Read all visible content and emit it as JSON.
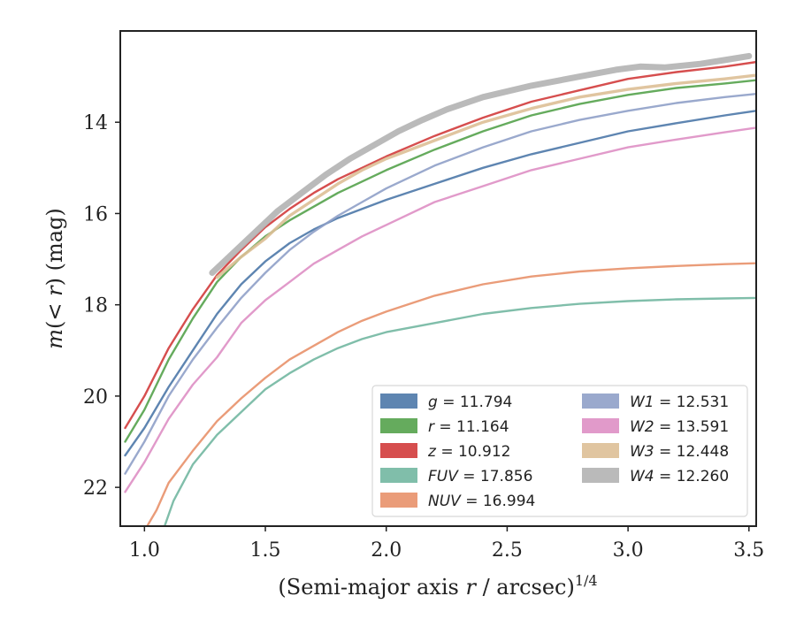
{
  "chart_data": {
    "type": "line",
    "xlabel": "(Semi-major axis r / arcsec)",
    "xlabel_parts": {
      "pre": "(Semi-major axis ",
      "var": "r",
      "post": " / arcsec)",
      "exp": "1/4"
    },
    "ylabel": "m(< r) (mag)",
    "ylabel_parts": {
      "pre": "m",
      "mid": "(< ",
      "var": "r",
      "post": ") (mag)"
    },
    "xlim": [
      0.9,
      3.53
    ],
    "ylim": [
      22.85,
      12.0
    ],
    "y_inverted": true,
    "xticks": [
      "1.0",
      "1.5",
      "2.0",
      "2.5",
      "3.0",
      "3.5"
    ],
    "xtick_values": [
      1.0,
      1.5,
      2.0,
      2.5,
      3.0,
      3.5
    ],
    "yticks": [
      "14",
      "16",
      "18",
      "20",
      "22"
    ],
    "ytick_values": [
      14,
      16,
      18,
      20,
      22
    ],
    "grid": false,
    "legend_position": "lower-right",
    "series": [
      {
        "name": "g = 11.794",
        "band": "g",
        "value": "11.794",
        "color": "#4c78a8",
        "width": 2.4,
        "points": [
          [
            0.92,
            21.3
          ],
          [
            1.0,
            20.7
          ],
          [
            1.1,
            19.8
          ],
          [
            1.2,
            19.0
          ],
          [
            1.3,
            18.2
          ],
          [
            1.4,
            17.55
          ],
          [
            1.5,
            17.05
          ],
          [
            1.6,
            16.65
          ],
          [
            1.7,
            16.35
          ],
          [
            1.8,
            16.1
          ],
          [
            1.9,
            15.9
          ],
          [
            2.0,
            15.7
          ],
          [
            2.2,
            15.35
          ],
          [
            2.4,
            15.0
          ],
          [
            2.6,
            14.7
          ],
          [
            2.8,
            14.45
          ],
          [
            3.0,
            14.2
          ],
          [
            3.2,
            14.02
          ],
          [
            3.4,
            13.85
          ],
          [
            3.53,
            13.75
          ]
        ]
      },
      {
        "name": "r = 11.164",
        "band": "r",
        "value": "11.164",
        "color": "#54a24b",
        "width": 2.4,
        "points": [
          [
            0.92,
            21.0
          ],
          [
            1.0,
            20.3
          ],
          [
            1.1,
            19.2
          ],
          [
            1.2,
            18.3
          ],
          [
            1.3,
            17.5
          ],
          [
            1.4,
            16.95
          ],
          [
            1.5,
            16.5
          ],
          [
            1.6,
            16.15
          ],
          [
            1.7,
            15.85
          ],
          [
            1.8,
            15.55
          ],
          [
            1.9,
            15.3
          ],
          [
            2.0,
            15.05
          ],
          [
            2.2,
            14.6
          ],
          [
            2.4,
            14.2
          ],
          [
            2.6,
            13.85
          ],
          [
            2.8,
            13.6
          ],
          [
            3.0,
            13.4
          ],
          [
            3.2,
            13.25
          ],
          [
            3.4,
            13.15
          ],
          [
            3.53,
            13.08
          ]
        ]
      },
      {
        "name": "z = 10.912",
        "band": "z",
        "value": "10.912",
        "color": "#d13b3b",
        "width": 2.4,
        "points": [
          [
            0.92,
            20.7
          ],
          [
            1.0,
            20.0
          ],
          [
            1.1,
            18.95
          ],
          [
            1.2,
            18.1
          ],
          [
            1.3,
            17.35
          ],
          [
            1.4,
            16.8
          ],
          [
            1.5,
            16.3
          ],
          [
            1.6,
            15.9
          ],
          [
            1.7,
            15.55
          ],
          [
            1.8,
            15.25
          ],
          [
            1.9,
            15.0
          ],
          [
            2.0,
            14.75
          ],
          [
            2.2,
            14.3
          ],
          [
            2.4,
            13.9
          ],
          [
            2.6,
            13.55
          ],
          [
            2.8,
            13.3
          ],
          [
            3.0,
            13.05
          ],
          [
            3.2,
            12.9
          ],
          [
            3.4,
            12.78
          ],
          [
            3.53,
            12.68
          ]
        ]
      },
      {
        "name": "FUV = 17.856",
        "band": "FUV",
        "value": "17.856",
        "color": "#72b7a1",
        "width": 2.4,
        "points": [
          [
            1.08,
            22.9
          ],
          [
            1.12,
            22.3
          ],
          [
            1.2,
            21.5
          ],
          [
            1.3,
            20.85
          ],
          [
            1.4,
            20.35
          ],
          [
            1.5,
            19.85
          ],
          [
            1.6,
            19.5
          ],
          [
            1.7,
            19.2
          ],
          [
            1.8,
            18.95
          ],
          [
            1.9,
            18.75
          ],
          [
            2.0,
            18.6
          ],
          [
            2.2,
            18.4
          ],
          [
            2.4,
            18.2
          ],
          [
            2.6,
            18.07
          ],
          [
            2.8,
            17.98
          ],
          [
            3.0,
            17.92
          ],
          [
            3.2,
            17.88
          ],
          [
            3.4,
            17.86
          ],
          [
            3.53,
            17.85
          ]
        ]
      },
      {
        "name": "NUV = 16.994",
        "band": "NUV",
        "value": "16.994",
        "color": "#e8916a",
        "width": 2.4,
        "points": [
          [
            1.0,
            22.95
          ],
          [
            1.05,
            22.5
          ],
          [
            1.1,
            21.9
          ],
          [
            1.2,
            21.2
          ],
          [
            1.3,
            20.55
          ],
          [
            1.4,
            20.05
          ],
          [
            1.5,
            19.6
          ],
          [
            1.6,
            19.2
          ],
          [
            1.7,
            18.9
          ],
          [
            1.8,
            18.6
          ],
          [
            1.9,
            18.35
          ],
          [
            2.0,
            18.15
          ],
          [
            2.2,
            17.8
          ],
          [
            2.4,
            17.55
          ],
          [
            2.6,
            17.38
          ],
          [
            2.8,
            17.27
          ],
          [
            3.0,
            17.2
          ],
          [
            3.2,
            17.15
          ],
          [
            3.4,
            17.11
          ],
          [
            3.53,
            17.09
          ]
        ]
      },
      {
        "name": "W1 = 12.531",
        "band": "W1",
        "value": "12.531",
        "color": "#8fa0c8",
        "width": 2.4,
        "points": [
          [
            0.92,
            21.7
          ],
          [
            1.0,
            21.0
          ],
          [
            1.1,
            20.0
          ],
          [
            1.2,
            19.2
          ],
          [
            1.3,
            18.5
          ],
          [
            1.4,
            17.85
          ],
          [
            1.5,
            17.3
          ],
          [
            1.6,
            16.8
          ],
          [
            1.7,
            16.4
          ],
          [
            1.8,
            16.05
          ],
          [
            1.9,
            15.75
          ],
          [
            2.0,
            15.45
          ],
          [
            2.2,
            14.95
          ],
          [
            2.4,
            14.55
          ],
          [
            2.6,
            14.2
          ],
          [
            2.8,
            13.95
          ],
          [
            3.0,
            13.75
          ],
          [
            3.2,
            13.58
          ],
          [
            3.4,
            13.45
          ],
          [
            3.53,
            13.38
          ]
        ]
      },
      {
        "name": "W2 = 13.591",
        "band": "W2",
        "value": "13.591",
        "color": "#de8fc4",
        "width": 2.4,
        "points": [
          [
            0.92,
            22.1
          ],
          [
            1.0,
            21.45
          ],
          [
            1.1,
            20.5
          ],
          [
            1.2,
            19.75
          ],
          [
            1.3,
            19.15
          ],
          [
            1.4,
            18.4
          ],
          [
            1.5,
            17.9
          ],
          [
            1.6,
            17.5
          ],
          [
            1.7,
            17.1
          ],
          [
            1.8,
            16.8
          ],
          [
            1.9,
            16.5
          ],
          [
            2.0,
            16.25
          ],
          [
            2.2,
            15.75
          ],
          [
            2.4,
            15.4
          ],
          [
            2.6,
            15.05
          ],
          [
            2.8,
            14.8
          ],
          [
            3.0,
            14.55
          ],
          [
            3.2,
            14.38
          ],
          [
            3.4,
            14.22
          ],
          [
            3.53,
            14.12
          ]
        ]
      },
      {
        "name": "W3 = 12.448",
        "band": "W3",
        "value": "12.448",
        "color": "#ddbf96",
        "width": 3.4,
        "points": [
          [
            1.3,
            17.4
          ],
          [
            1.4,
            16.95
          ],
          [
            1.5,
            16.55
          ],
          [
            1.6,
            16.05
          ],
          [
            1.7,
            15.7
          ],
          [
            1.8,
            15.35
          ],
          [
            1.9,
            15.05
          ],
          [
            2.0,
            14.8
          ],
          [
            2.2,
            14.4
          ],
          [
            2.4,
            14.0
          ],
          [
            2.6,
            13.7
          ],
          [
            2.8,
            13.45
          ],
          [
            3.0,
            13.28
          ],
          [
            3.2,
            13.15
          ],
          [
            3.4,
            13.05
          ],
          [
            3.53,
            12.97
          ]
        ]
      },
      {
        "name": "W4 = 12.260",
        "band": "W4",
        "value": "12.260",
        "color": "#b3b3b3",
        "width": 7,
        "points": [
          [
            1.28,
            17.3
          ],
          [
            1.35,
            16.95
          ],
          [
            1.45,
            16.45
          ],
          [
            1.55,
            15.95
          ],
          [
            1.65,
            15.55
          ],
          [
            1.75,
            15.15
          ],
          [
            1.85,
            14.8
          ],
          [
            1.95,
            14.5
          ],
          [
            2.05,
            14.2
          ],
          [
            2.15,
            13.95
          ],
          [
            2.25,
            13.72
          ],
          [
            2.4,
            13.45
          ],
          [
            2.6,
            13.2
          ],
          [
            2.8,
            13.0
          ],
          [
            2.95,
            12.85
          ],
          [
            3.05,
            12.78
          ],
          [
            3.15,
            12.8
          ],
          [
            3.3,
            12.72
          ],
          [
            3.42,
            12.62
          ],
          [
            3.5,
            12.55
          ]
        ]
      }
    ]
  }
}
